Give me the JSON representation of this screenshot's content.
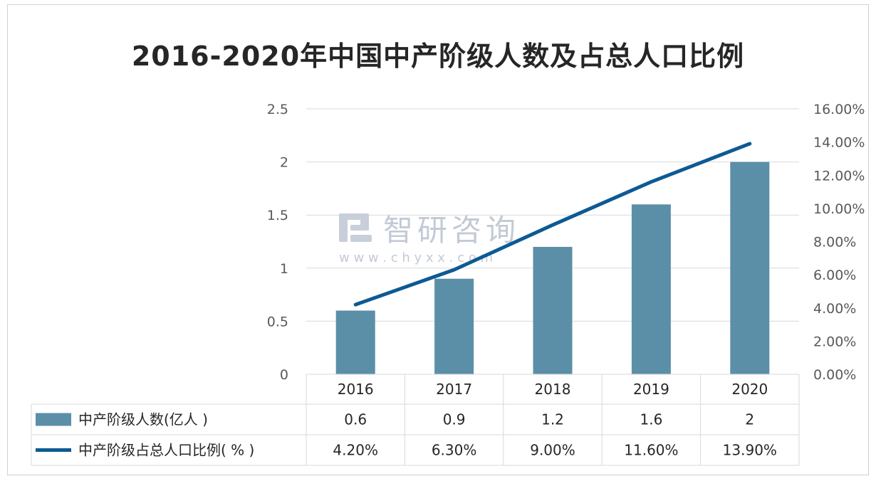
{
  "watermark": {
    "brand": "智研咨询",
    "url": "w w w . c h y x x . c o m"
  },
  "chart_data": {
    "type": "bar",
    "title": "2016-2020年中国中产阶级人数及占总人口比例",
    "categories": [
      "2016",
      "2017",
      "2018",
      "2019",
      "2020"
    ],
    "series": [
      {
        "name": "中产阶级人数(亿人 )",
        "type": "bar",
        "axis": "left",
        "values": [
          0.6,
          0.9,
          1.2,
          1.6,
          2
        ],
        "labels": [
          "0.6",
          "0.9",
          "1.2",
          "1.6",
          "2"
        ],
        "color": "#5b8fa8"
      },
      {
        "name": "中产阶级占总人口比例( % )",
        "type": "line",
        "axis": "right",
        "values": [
          4.2,
          6.3,
          9.0,
          11.6,
          13.9
        ],
        "labels": [
          "4.20%",
          "6.30%",
          "9.00%",
          "11.60%",
          "13.90%"
        ],
        "color": "#0d5a93"
      }
    ],
    "y_left": {
      "ylim": [
        0,
        2.5
      ],
      "ticks": [
        0,
        0.5,
        1,
        1.5,
        2,
        2.5
      ],
      "tick_labels": [
        "0",
        "0.5",
        "1",
        "1.5",
        "2",
        "2.5"
      ]
    },
    "y_right": {
      "ylim": [
        0,
        16
      ],
      "ticks": [
        0,
        2,
        4,
        6,
        8,
        10,
        12,
        14,
        16
      ],
      "tick_labels": [
        "0.00%",
        "2.00%",
        "4.00%",
        "6.00%",
        "8.00%",
        "10.00%",
        "12.00%",
        "14.00%",
        "16.00%"
      ]
    },
    "grid": true,
    "legend": "data-table"
  }
}
